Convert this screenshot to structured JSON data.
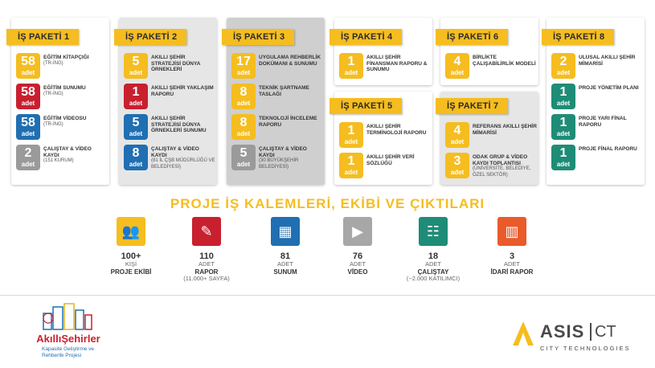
{
  "packages": [
    {
      "title": "İŞ PAKETİ 1",
      "items": [
        {
          "num": "58",
          "unit": "adet",
          "color": "yellow",
          "label": "EĞİTİM KİTAPÇIĞI",
          "sub": "(TR-İNG)"
        },
        {
          "num": "58",
          "unit": "adet",
          "color": "red",
          "label": "EĞİTİM SUNUMU",
          "sub": "(TR-İNG)"
        },
        {
          "num": "58",
          "unit": "adet",
          "color": "blue",
          "label": "EĞİTİM VİDEOSU",
          "sub": "(TR-İNG)"
        },
        {
          "num": "2",
          "unit": "adet",
          "color": "grey",
          "label": "ÇALIŞTAY & VİDEO KAYDI",
          "sub": "(151 KURUM)"
        }
      ]
    },
    {
      "title": "İŞ PAKETİ 2",
      "items": [
        {
          "num": "5",
          "unit": "adet",
          "color": "yellow",
          "label": "AKILLI ŞEHİR STRATEJİSİ DÜNYA ÖRNEKLERİ",
          "sub": ""
        },
        {
          "num": "1",
          "unit": "adet",
          "color": "red",
          "label": "AKILLI ŞEHİR YAKLAŞIM RAPORU",
          "sub": ""
        },
        {
          "num": "5",
          "unit": "adet",
          "color": "blue",
          "label": "AKILLI ŞEHİR STRATEJİSİ DÜNYA ÖRNEKLERİ SUNUMU",
          "sub": ""
        },
        {
          "num": "8",
          "unit": "adet",
          "color": "blue",
          "label": "ÇALIŞTAY & VİDEO KAYDI",
          "sub": "(81 İL ÇŞB MÜDÜRLÜĞÜ VE BELEDİYESİ)"
        }
      ]
    },
    {
      "title": "İŞ PAKETİ 3",
      "items": [
        {
          "num": "17",
          "unit": "adet",
          "color": "yellow",
          "label": "UYGULAMA REHBERLİK DOKÜMANI & SUNUMU",
          "sub": ""
        },
        {
          "num": "8",
          "unit": "adet",
          "color": "yellow",
          "label": "TEKNİK ŞARTNAME TASLAĞI",
          "sub": ""
        },
        {
          "num": "8",
          "unit": "adet",
          "color": "yellow",
          "label": "TEKNOLOJİ İNCELEME RAPORU",
          "sub": ""
        },
        {
          "num": "5",
          "unit": "adet",
          "color": "grey",
          "label": "ÇALIŞTAY & VİDEO KAYDI",
          "sub": "(30 BÜYÜKŞEHİR BELEDİYESİ)"
        }
      ]
    },
    {
      "title": "İŞ PAKETİ 4",
      "items": [
        {
          "num": "1",
          "unit": "adet",
          "color": "yellow",
          "label": "AKILLI ŞEHİR FİNANSMAN RAPORU & SUNUMU",
          "sub": ""
        }
      ]
    },
    {
      "title": "İŞ PAKETİ 5",
      "items": [
        {
          "num": "1",
          "unit": "adet",
          "color": "yellow",
          "label": "AKILLI ŞEHİR TERMİNOLOJİ RAPORU",
          "sub": ""
        },
        {
          "num": "1",
          "unit": "adet",
          "color": "yellow",
          "label": "AKILLI ŞEHİR VERİ SÖZLÜĞÜ",
          "sub": ""
        }
      ]
    },
    {
      "title": "İŞ PAKETİ 6",
      "items": [
        {
          "num": "4",
          "unit": "adet",
          "color": "yellow",
          "label": "BİRLİKTE ÇALIŞABİLİRLİK MODELİ",
          "sub": ""
        }
      ]
    },
    {
      "title": "İŞ PAKETİ 7",
      "items": [
        {
          "num": "4",
          "unit": "adet",
          "color": "yellow",
          "label": "REFERANS AKILLI ŞEHİR MİMARİSİ",
          "sub": ""
        },
        {
          "num": "3",
          "unit": "adet",
          "color": "yellow",
          "label": "ODAK GRUP & VİDEO KAYDI TOPLANTISI",
          "sub": "(ÜNİVERSİTE, BELEDİYE, ÖZEL SEKTÖR)"
        }
      ]
    },
    {
      "title": "İŞ PAKETİ 8",
      "items": [
        {
          "num": "2",
          "unit": "adet",
          "color": "yellow",
          "label": "ULUSAL AKILLI ŞEHİR MİMARİSİ",
          "sub": ""
        },
        {
          "num": "1",
          "unit": "adet",
          "color": "teal",
          "label": "PROJE YÖNETİM PLANI",
          "sub": ""
        },
        {
          "num": "1",
          "unit": "adet",
          "color": "teal",
          "label": "PROJE YARI FİNAL RAPORU",
          "sub": ""
        },
        {
          "num": "1",
          "unit": "adet",
          "color": "teal",
          "label": "PROJE FİNAL RAPORU",
          "sub": ""
        }
      ]
    }
  ],
  "section_title": "PROJE İŞ KALEMLERİ, EKİBİ VE ÇIKTILARI",
  "stats": [
    {
      "big": "100+",
      "small": "KİŞİ",
      "bold": "PROJE EKİBİ",
      "note": "",
      "color": "#f5bd1f",
      "icon": "team-icon"
    },
    {
      "big": "110",
      "small": "ADET",
      "bold": "RAPOR",
      "note": "(11.000+ SAYFA)",
      "color": "#c8202f",
      "icon": "report-icon"
    },
    {
      "big": "81",
      "small": "ADET",
      "bold": "SUNUM",
      "note": "",
      "color": "#1f6fb2",
      "icon": "presentation-icon"
    },
    {
      "big": "76",
      "small": "ADET",
      "bold": "VİDEO",
      "note": "",
      "color": "#a7a7a7",
      "icon": "video-icon"
    },
    {
      "big": "18",
      "small": "ADET",
      "bold": "ÇALIŞTAY",
      "note": "(~2.000 KATILIMCI)",
      "color": "#1e8c77",
      "icon": "workshop-icon"
    },
    {
      "big": "3",
      "small": "ADET",
      "bold": "İDARİ RAPOR",
      "note": "",
      "color": "#ea5a2a",
      "icon": "admin-report-icon"
    }
  ],
  "logo_left": {
    "brand": "AkıllıŞehirler",
    "line1": "Kapasite Geliştirme ve",
    "line2": "Rehberlik Projesi"
  },
  "logo_right": {
    "brand": "ASIS",
    "suffix": "CT",
    "tagline": "CITY TECHNOLOGIES"
  },
  "colors": {
    "yellow": "#f5bd1f",
    "red": "#c8202f",
    "blue": "#1f6fb2",
    "teal": "#1e8c77",
    "grey": "#9a9a9a"
  }
}
